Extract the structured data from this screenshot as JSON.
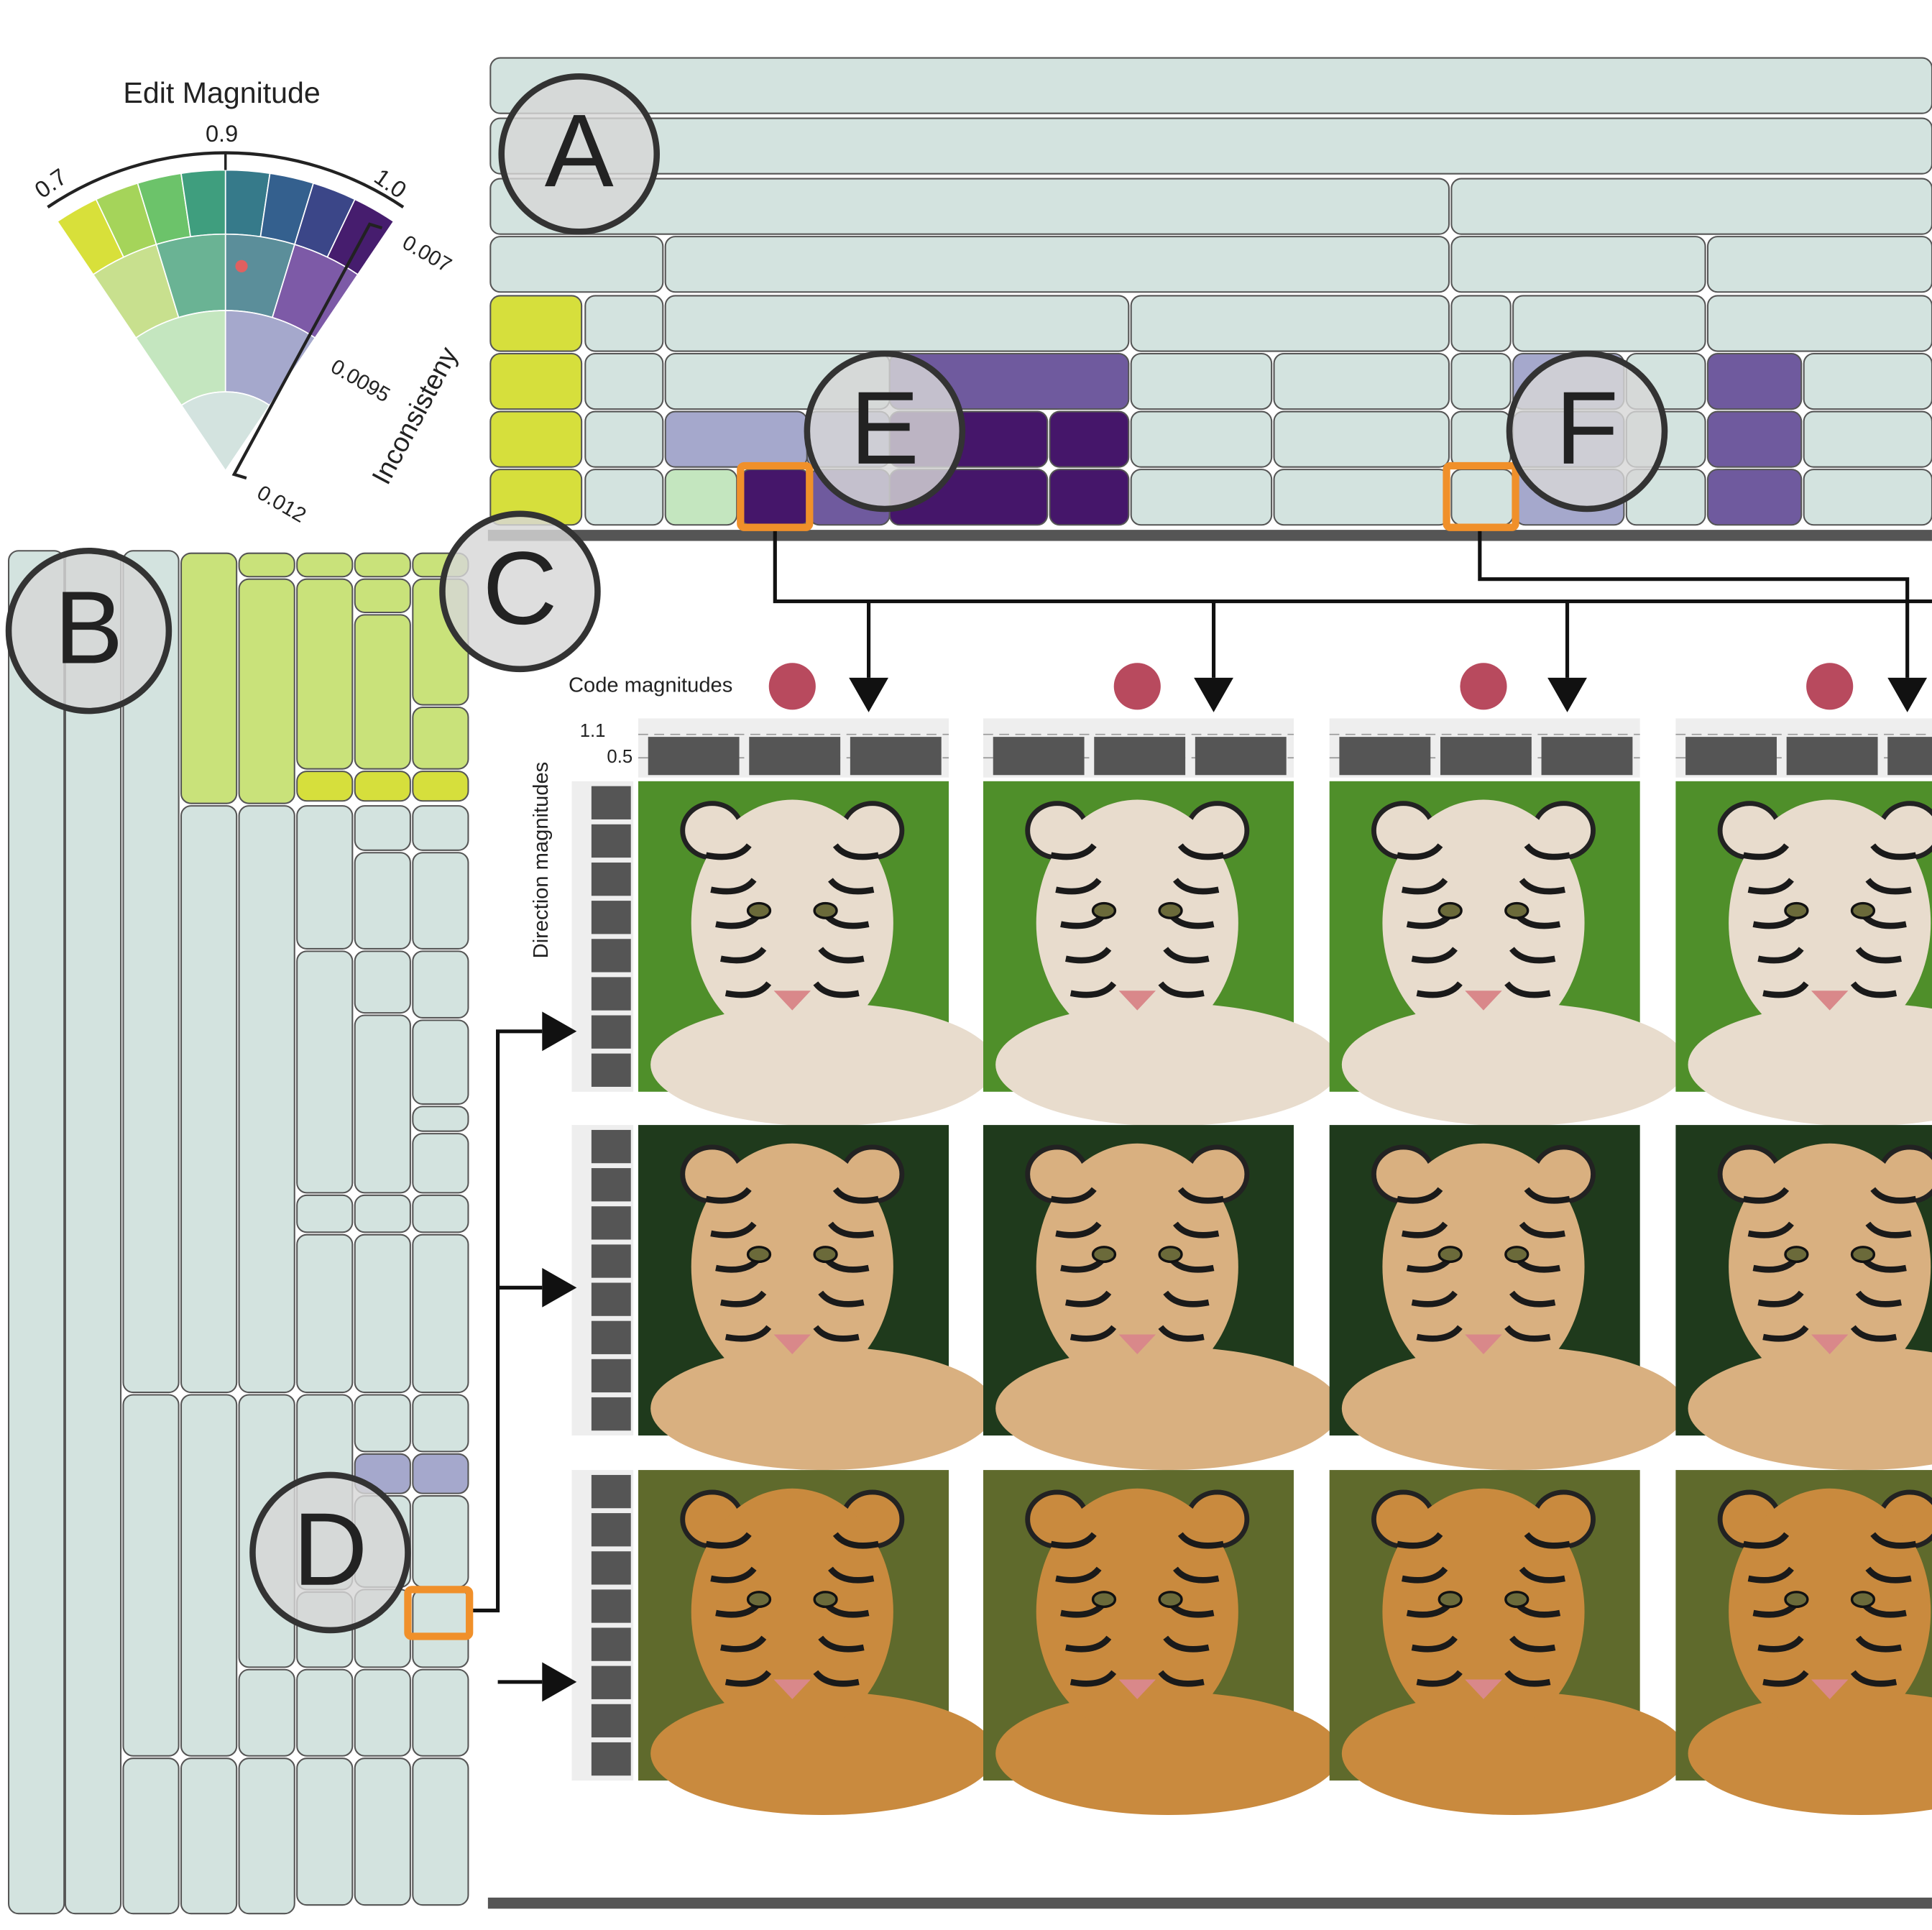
{
  "legend": {
    "title": "Edit Magnitude",
    "magnitude_ticks": [
      "0.7",
      "0.9",
      "1.0"
    ],
    "inconsistency_ticks": [
      "0.007",
      "0.0095",
      "0.012"
    ],
    "inconsistency_label": "Inconsisteny"
  },
  "panels": {
    "labels": [
      "A",
      "B",
      "C",
      "D",
      "E",
      "F"
    ]
  },
  "grid": {
    "code_label": "Code magnitudes",
    "direction_label": "Direction magnitudes",
    "code_ticks": [
      "1.1",
      "0.5"
    ]
  }
}
